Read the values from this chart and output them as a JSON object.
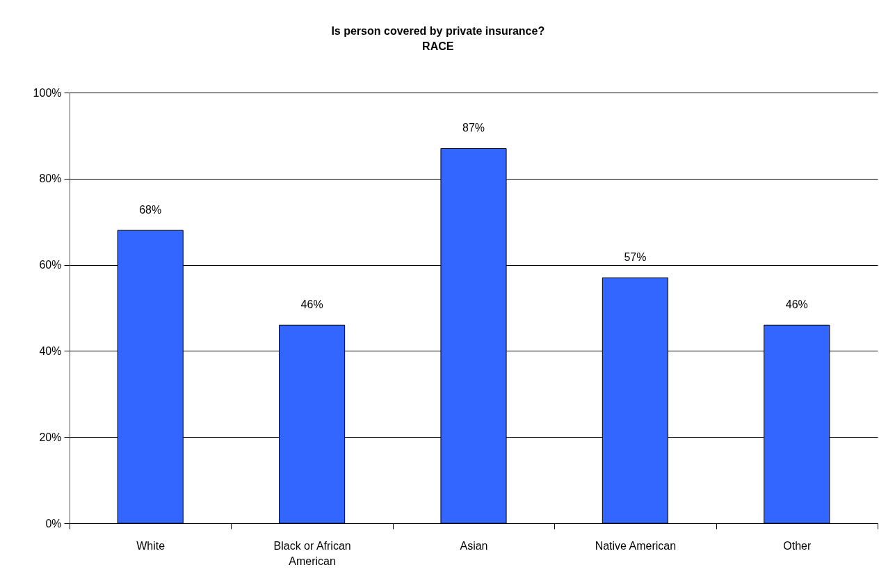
{
  "chart_data": {
    "type": "bar",
    "title": "Is person covered by private insurance?",
    "subtitle": "RACE",
    "categories": [
      "White",
      "Black or African American",
      "Asian",
      "Native American",
      "Other"
    ],
    "values": [
      68,
      46,
      87,
      57,
      46
    ],
    "value_labels": [
      "68%",
      "46%",
      "87%",
      "57%",
      "46%"
    ],
    "color": "#3366ff",
    "ylim": [
      0,
      100
    ],
    "yticks": [
      {
        "value": 0,
        "label": "0%"
      },
      {
        "value": 20,
        "label": "20%"
      },
      {
        "value": 40,
        "label": "40%"
      },
      {
        "value": 60,
        "label": "60%"
      },
      {
        "value": 80,
        "label": "80%"
      },
      {
        "value": 100,
        "label": "100%"
      }
    ],
    "grid": "y"
  }
}
